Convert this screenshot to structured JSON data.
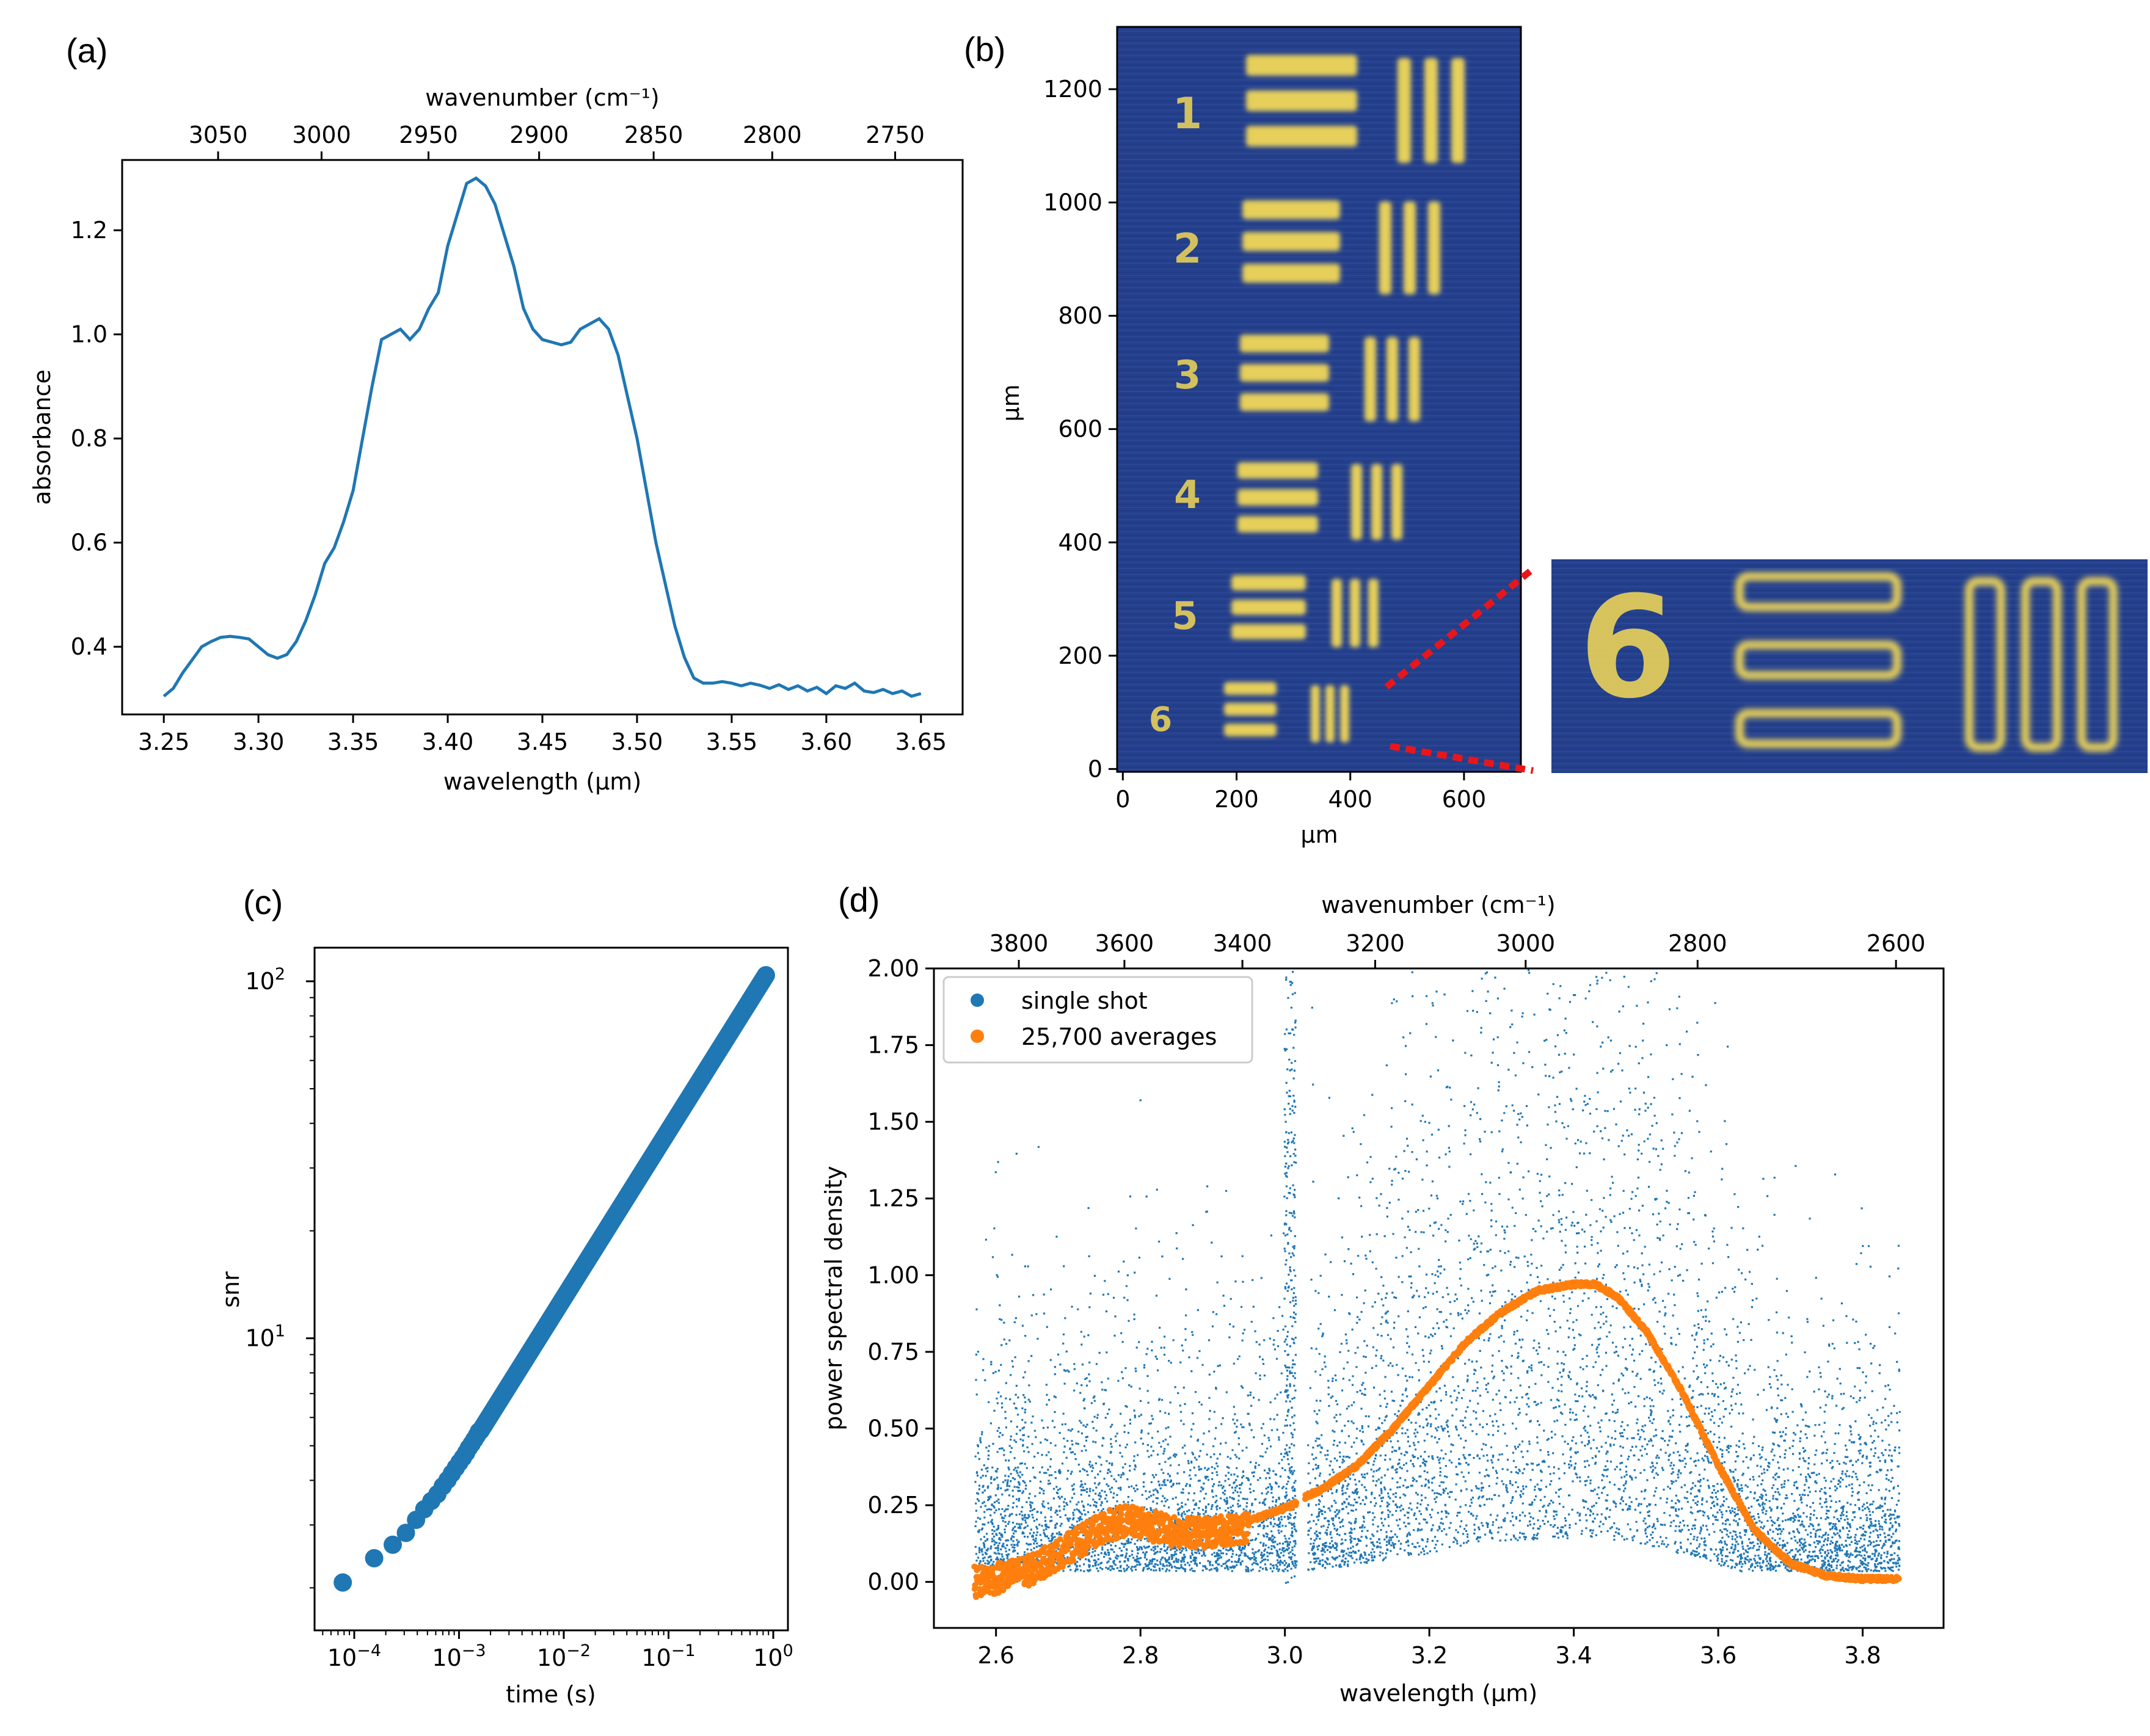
{
  "figure": {
    "panel_letters": [
      "(a)",
      "(b)",
      "(c)",
      "(d)"
    ]
  },
  "colors": {
    "blue": "#1f77b4",
    "orange": "#ff7f0e",
    "target_bg": "#243f8c",
    "target_bar": "#e6cf5a",
    "zoom_marker": "#e8161b"
  },
  "chart_data": [
    {
      "panel": "(a)",
      "type": "line",
      "xlabel": "wavelength (µm)",
      "ylabel": "absorbance",
      "top_axis_label": "wavenumber (cm⁻¹)",
      "xlim": [
        3.228,
        3.672
      ],
      "ylim": [
        0.27,
        1.335
      ],
      "xticks": [
        3.25,
        3.3,
        3.35,
        3.4,
        3.45,
        3.5,
        3.55,
        3.6,
        3.65
      ],
      "xtick_labels": [
        "3.25",
        "3.30",
        "3.35",
        "3.40",
        "3.45",
        "3.50",
        "3.55",
        "3.60",
        "3.65"
      ],
      "yticks": [
        0.4,
        0.6,
        0.8,
        1.0,
        1.2
      ],
      "ytick_labels": [
        "0.4",
        "0.6",
        "0.8",
        "1.0",
        "1.2"
      ],
      "top_ticks": [
        3050,
        3000,
        2950,
        2900,
        2850,
        2800,
        2750
      ],
      "top_tick_labels": [
        "3050",
        "3000",
        "2950",
        "2900",
        "2850",
        "2800",
        "2750"
      ],
      "series": [
        {
          "x": [
            3.25,
            3.255,
            3.26,
            3.265,
            3.27,
            3.275,
            3.28,
            3.285,
            3.29,
            3.295,
            3.3,
            3.305,
            3.31,
            3.315,
            3.32,
            3.325,
            3.33,
            3.335,
            3.34,
            3.345,
            3.35,
            3.355,
            3.36,
            3.365,
            3.37,
            3.375,
            3.38,
            3.385,
            3.39,
            3.395,
            3.4,
            3.405,
            3.41,
            3.415,
            3.42,
            3.425,
            3.43,
            3.435,
            3.44,
            3.445,
            3.45,
            3.455,
            3.46,
            3.465,
            3.47,
            3.475,
            3.48,
            3.485,
            3.49,
            3.495,
            3.5,
            3.505,
            3.51,
            3.515,
            3.52,
            3.525,
            3.53,
            3.535,
            3.54,
            3.545,
            3.55,
            3.555,
            3.56,
            3.565,
            3.57,
            3.575,
            3.58,
            3.585,
            3.59,
            3.595,
            3.6,
            3.605,
            3.61,
            3.615,
            3.62,
            3.625,
            3.63,
            3.635,
            3.64,
            3.645,
            3.65
          ],
          "values": [
            0.305,
            0.32,
            0.35,
            0.375,
            0.4,
            0.41,
            0.418,
            0.42,
            0.418,
            0.415,
            0.4,
            0.385,
            0.378,
            0.385,
            0.41,
            0.45,
            0.5,
            0.56,
            0.59,
            0.64,
            0.7,
            0.8,
            0.9,
            0.99,
            1.0,
            1.01,
            0.99,
            1.01,
            1.05,
            1.08,
            1.17,
            1.23,
            1.29,
            1.3,
            1.285,
            1.25,
            1.19,
            1.13,
            1.05,
            1.01,
            0.99,
            0.985,
            0.98,
            0.985,
            1.01,
            1.02,
            1.03,
            1.01,
            0.96,
            0.88,
            0.8,
            0.7,
            0.6,
            0.52,
            0.44,
            0.38,
            0.34,
            0.33,
            0.33,
            0.333,
            0.33,
            0.325,
            0.33,
            0.326,
            0.32,
            0.327,
            0.318,
            0.325,
            0.315,
            0.322,
            0.31,
            0.325,
            0.32,
            0.33,
            0.315,
            0.312,
            0.318,
            0.31,
            0.315,
            0.305,
            0.31
          ]
        }
      ]
    },
    {
      "panel": "(b)",
      "type": "heatmap",
      "xlabel": "µm",
      "ylabel": "µm",
      "xlim": [
        -10,
        700
      ],
      "ylim": [
        -5,
        1310
      ],
      "xticks": [
        0,
        200,
        400,
        600
      ],
      "xtick_labels": [
        "0",
        "200",
        "400",
        "600"
      ],
      "yticks": [
        0,
        200,
        400,
        600,
        800,
        1000,
        1200
      ],
      "ytick_labels": [
        "0",
        "200",
        "400",
        "600",
        "800",
        "1000",
        "1200"
      ],
      "element_labels": [
        "1",
        "2",
        "3",
        "4",
        "5",
        "6"
      ],
      "zoom_label": "6"
    },
    {
      "panel": "(c)",
      "type": "scatter",
      "xlabel": "time (s)",
      "ylabel": "snr",
      "x_scale": "log",
      "y_scale": "log",
      "xlim": [
        4.18e-05,
        1.38
      ],
      "ylim": [
        1.52,
        124.2
      ],
      "xtick_labels": [
        "10",
        "10",
        "10",
        "10",
        "10"
      ],
      "xtick_exponents": [
        "−4",
        "−3",
        "−2",
        "−1",
        "0"
      ],
      "ytick_labels": [
        "10",
        "10"
      ],
      "ytick_exponents": [
        "1",
        "2"
      ],
      "series": [
        {
          "x": [
            7.77e-05,
            0.000155,
            0.000233,
            0.000311,
            0.000389,
            0.000466,
            0.000544,
            0.000622,
            0.0007,
            0.000777,
            0.000855,
            0.000933,
            0.00101,
            0.00109,
            0.00117,
            0.00124,
            0.00132,
            0.0014,
            0.00148,
            0.00155
          ],
          "values": [
            2.07,
            2.42,
            2.64,
            2.85,
            3.1,
            3.32,
            3.5,
            3.66,
            3.85,
            4.01,
            4.18,
            4.34,
            4.49,
            4.63,
            4.78,
            4.93,
            5.06,
            5.2,
            5.34,
            5.48
          ]
        }
      ],
      "dense_trend": {
        "x_start": 0.0016,
        "x_end": 0.85,
        "values": [
          5.5,
          104.0
        ]
      }
    },
    {
      "panel": "(d)",
      "type": "scatter",
      "xlabel": "wavelength (µm)",
      "ylabel": "power spectral density",
      "top_axis_label": "wavenumber (cm⁻¹)",
      "xlim": [
        2.514,
        3.912
      ],
      "ylim": [
        -0.15,
        2.0
      ],
      "xticks": [
        2.6,
        2.8,
        3.0,
        3.2,
        3.4,
        3.6,
        3.8
      ],
      "xtick_labels": [
        "2.6",
        "2.8",
        "3.0",
        "3.2",
        "3.4",
        "3.6",
        "3.8"
      ],
      "yticks": [
        0.0,
        0.25,
        0.5,
        0.75,
        1.0,
        1.25,
        1.5,
        1.75,
        2.0
      ],
      "ytick_labels": [
        "0.00",
        "0.25",
        "0.50",
        "0.75",
        "1.00",
        "1.25",
        "1.50",
        "1.75",
        "2.00"
      ],
      "top_ticks": [
        3800,
        3600,
        3400,
        3200,
        3000,
        2800,
        2600
      ],
      "top_tick_labels": [
        "3800",
        "3600",
        "3400",
        "3200",
        "3000",
        "2800",
        "2600"
      ],
      "legend_loc": "upper left",
      "series": [
        {
          "name": "single shot",
          "x_range": [
            2.57,
            3.85
          ],
          "gap": [
            3.015,
            3.03
          ]
        },
        {
          "name": "25,700 averages",
          "x": [
            2.57,
            2.6,
            2.65,
            2.7,
            2.75,
            2.78,
            2.82,
            2.85,
            2.9,
            2.95,
            3.0,
            3.01,
            3.03,
            3.05,
            3.1,
            3.15,
            3.2,
            3.25,
            3.3,
            3.35,
            3.4,
            3.43,
            3.46,
            3.5,
            3.55,
            3.6,
            3.65,
            3.7,
            3.75,
            3.8,
            3.85
          ],
          "values": [
            0.02,
            0.03,
            0.06,
            0.13,
            0.2,
            0.22,
            0.2,
            0.18,
            0.18,
            0.2,
            0.24,
            0.25,
            0.28,
            0.3,
            0.38,
            0.5,
            0.64,
            0.78,
            0.88,
            0.95,
            0.97,
            0.97,
            0.93,
            0.82,
            0.62,
            0.38,
            0.17,
            0.06,
            0.02,
            0.01,
            0.01
          ]
        }
      ]
    }
  ]
}
